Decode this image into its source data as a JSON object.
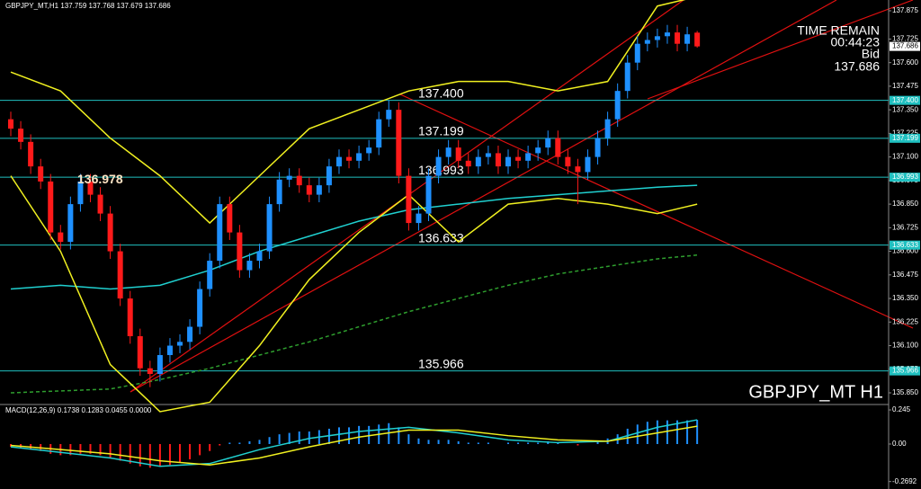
{
  "chart_data": [
    {
      "type": "candlestick",
      "header": "GBPJPY_MT,H1 137.759 137.768 137.679 137.686",
      "time_remain_title": "TIME REMAIN",
      "time_remain": "00:44:23",
      "bid_label": "Bid",
      "bid": 137.686,
      "symbol_label": "GBPJPY_MT H1",
      "price_label": 136.978,
      "current_price": 137.686,
      "up_color": "#1e90ff",
      "down_color": "#ff1a1a",
      "level_color": "#20c0c0",
      "ylim": [
        135.788,
        137.932
      ],
      "yticks": [
        {
          "value": 137.875,
          "label": "137.875"
        },
        {
          "value": 137.725,
          "label": "137.725"
        },
        {
          "value": 137.6,
          "label": "137.600"
        },
        {
          "value": 137.475,
          "label": "137.475"
        },
        {
          "value": 137.35,
          "label": "137.350"
        },
        {
          "value": 137.225,
          "label": "137.225"
        },
        {
          "value": 137.1,
          "label": "137.100"
        },
        {
          "value": 136.975,
          "label": "136.975"
        },
        {
          "value": 136.85,
          "label": "136.850"
        },
        {
          "value": 136.725,
          "label": "136.725"
        },
        {
          "value": 136.6,
          "label": "136.600"
        },
        {
          "value": 136.475,
          "label": "136.475"
        },
        {
          "value": 136.35,
          "label": "136.350"
        },
        {
          "value": 136.225,
          "label": "136.225"
        },
        {
          "value": 136.1,
          "label": "136.100"
        },
        {
          "value": 135.975,
          "label": "135.975"
        },
        {
          "value": 135.85,
          "label": "135.850"
        }
      ],
      "levels": [
        {
          "value": 137.4,
          "label": "137.400"
        },
        {
          "value": 137.199,
          "label": "137.199"
        },
        {
          "value": 136.993,
          "label": "136.993"
        },
        {
          "value": 136.633,
          "label": "136.633"
        },
        {
          "value": 135.966,
          "label": "135.966"
        }
      ],
      "ohlc": [
        [
          137.3,
          137.34,
          137.21,
          137.25
        ],
        [
          137.25,
          137.29,
          137.14,
          137.18
        ],
        [
          137.18,
          137.22,
          137.01,
          137.05
        ],
        [
          137.05,
          137.09,
          136.93,
          136.97
        ],
        [
          136.97,
          137.01,
          136.66,
          136.7
        ],
        [
          136.7,
          136.74,
          136.61,
          136.65
        ],
        [
          136.65,
          136.89,
          136.61,
          136.85
        ],
        [
          136.85,
          137.01,
          136.81,
          136.97
        ],
        [
          136.97,
          137.01,
          136.86,
          136.9
        ],
        [
          136.9,
          136.94,
          136.76,
          136.8
        ],
        [
          136.8,
          136.84,
          136.56,
          136.6
        ],
        [
          136.6,
          136.64,
          136.31,
          136.35
        ],
        [
          136.35,
          136.39,
          136.11,
          136.15
        ],
        [
          136.15,
          136.19,
          135.94,
          135.98
        ],
        [
          135.98,
          136.02,
          135.88,
          135.95
        ],
        [
          135.95,
          136.09,
          135.91,
          136.05
        ],
        [
          136.05,
          136.14,
          136.01,
          136.1
        ],
        [
          136.1,
          136.16,
          136.06,
          136.12
        ],
        [
          136.12,
          136.24,
          136.08,
          136.2
        ],
        [
          136.2,
          136.44,
          136.16,
          136.4
        ],
        [
          136.4,
          136.59,
          136.36,
          136.55
        ],
        [
          136.55,
          136.89,
          136.51,
          136.85
        ],
        [
          136.85,
          136.89,
          136.66,
          136.7
        ],
        [
          136.7,
          136.74,
          136.46,
          136.5
        ],
        [
          136.5,
          136.59,
          136.46,
          136.55
        ],
        [
          136.55,
          136.64,
          136.51,
          136.6
        ],
        [
          136.6,
          136.89,
          136.56,
          136.85
        ],
        [
          136.85,
          137.02,
          136.81,
          136.98
        ],
        [
          136.98,
          137.04,
          136.94,
          137.0
        ],
        [
          137.0,
          137.04,
          136.91,
          136.95
        ],
        [
          136.95,
          136.99,
          136.86,
          136.9
        ],
        [
          136.9,
          136.99,
          136.86,
          136.95
        ],
        [
          136.95,
          137.09,
          136.91,
          137.05
        ],
        [
          137.05,
          137.14,
          137.01,
          137.1
        ],
        [
          137.1,
          137.14,
          137.04,
          137.08
        ],
        [
          137.08,
          137.16,
          137.04,
          137.12
        ],
        [
          137.12,
          137.19,
          137.08,
          137.15
        ],
        [
          137.15,
          137.34,
          137.11,
          137.3
        ],
        [
          137.3,
          137.4,
          137.26,
          137.35
        ],
        [
          137.35,
          137.39,
          136.96,
          137.0
        ],
        [
          137.0,
          137.04,
          136.71,
          136.75
        ],
        [
          136.75,
          136.84,
          136.71,
          136.8
        ],
        [
          136.8,
          137.04,
          136.76,
          137.0
        ],
        [
          137.0,
          137.14,
          136.96,
          137.1
        ],
        [
          137.1,
          137.19,
          137.06,
          137.15
        ],
        [
          137.15,
          137.19,
          137.04,
          137.08
        ],
        [
          137.08,
          137.12,
          137.01,
          137.05
        ],
        [
          137.05,
          137.14,
          137.01,
          137.1
        ],
        [
          137.1,
          137.16,
          137.06,
          137.12
        ],
        [
          137.12,
          137.16,
          137.01,
          137.05
        ],
        [
          137.05,
          137.14,
          137.01,
          137.1
        ],
        [
          137.1,
          137.14,
          137.04,
          137.08
        ],
        [
          137.08,
          137.16,
          137.04,
          137.12
        ],
        [
          137.12,
          137.19,
          137.08,
          137.15
        ],
        [
          137.15,
          137.24,
          137.11,
          137.2
        ],
        [
          137.2,
          137.24,
          137.06,
          137.1
        ],
        [
          137.1,
          137.14,
          137.01,
          137.05
        ],
        [
          137.05,
          137.09,
          136.85,
          137.02
        ],
        [
          137.02,
          137.14,
          136.98,
          137.1
        ],
        [
          137.1,
          137.24,
          137.06,
          137.2
        ],
        [
          137.2,
          137.34,
          137.16,
          137.3
        ],
        [
          137.3,
          137.49,
          137.26,
          137.45
        ],
        [
          137.45,
          137.64,
          137.41,
          137.6
        ],
        [
          137.6,
          137.74,
          137.56,
          137.7
        ],
        [
          137.7,
          137.76,
          137.66,
          137.72
        ],
        [
          137.72,
          137.78,
          137.68,
          137.74
        ],
        [
          137.74,
          137.8,
          137.7,
          137.76
        ],
        [
          137.76,
          137.8,
          137.66,
          137.7
        ],
        [
          137.7,
          137.79,
          137.66,
          137.75
        ],
        [
          137.759,
          137.768,
          137.679,
          137.686
        ]
      ],
      "overlay_x": [
        0,
        5,
        10,
        15,
        20,
        25,
        30,
        35,
        40,
        45,
        50,
        55,
        60,
        65,
        69
      ],
      "overlays": [
        {
          "color": "#20d0d0",
          "values": [
            136.4,
            136.42,
            136.4,
            136.42,
            136.5,
            136.6,
            136.68,
            136.76,
            136.82,
            136.85,
            136.88,
            136.9,
            136.92,
            136.94,
            136.95
          ]
        },
        {
          "color": "#2e9e2e",
          "dash": true,
          "values": [
            135.85,
            135.86,
            135.87,
            135.92,
            135.98,
            136.05,
            136.12,
            136.2,
            136.28,
            136.35,
            136.42,
            136.48,
            136.52,
            136.56,
            136.58
          ]
        },
        {
          "color": "#f0f020",
          "values": [
            137.55,
            137.45,
            137.2,
            137.0,
            136.75,
            137.0,
            137.25,
            137.35,
            137.45,
            137.5,
            137.5,
            137.45,
            137.5,
            137.9,
            137.95
          ]
        },
        {
          "color": "#f0f020",
          "values": [
            137.0,
            136.6,
            136.0,
            135.75,
            135.8,
            136.1,
            136.45,
            136.7,
            136.9,
            136.65,
            136.85,
            136.88,
            136.85,
            136.8,
            136.85
          ]
        }
      ]
    },
    {
      "type": "macd",
      "header": "MACD(12,26,9) 0.1738 0.1283 0.0455 0.0000",
      "pos_color": "#1e90ff",
      "neg_color": "#ff1a1a",
      "ylim": [
        -0.297,
        0.271
      ],
      "yticks": [
        0.245,
        {
          "value": 0,
          "label": "0.00"
        },
        -0.2692
      ],
      "values": [
        -0.02,
        -0.03,
        -0.04,
        -0.05,
        -0.07,
        -0.08,
        -0.08,
        -0.07,
        -0.07,
        -0.08,
        -0.1,
        -0.12,
        -0.14,
        -0.16,
        -0.17,
        -0.16,
        -0.15,
        -0.13,
        -0.11,
        -0.08,
        -0.05,
        -0.01,
        0.01,
        0.01,
        0.02,
        0.03,
        0.05,
        0.07,
        0.08,
        0.09,
        0.09,
        0.1,
        0.11,
        0.12,
        0.12,
        0.13,
        0.13,
        0.14,
        0.15,
        0.12,
        0.07,
        0.04,
        0.03,
        0.03,
        0.03,
        0.02,
        0.01,
        0.01,
        0.01,
        0.0,
        0.01,
        0.01,
        0.01,
        0.01,
        0.02,
        0.01,
        0.0,
        -0.01,
        0.0,
        0.02,
        0.04,
        0.07,
        0.11,
        0.14,
        0.16,
        0.17,
        0.17,
        0.17,
        0.17,
        0.1738
      ],
      "overlay_x": [
        0,
        5,
        10,
        15,
        20,
        25,
        30,
        35,
        40,
        45,
        50,
        55,
        60,
        65,
        69
      ],
      "overlays": [
        {
          "color": "#20d0d0",
          "values": [
            -0.02,
            -0.06,
            -0.1,
            -0.16,
            -0.14,
            -0.04,
            0.04,
            0.09,
            0.12,
            0.08,
            0.03,
            0.01,
            0.02,
            0.12,
            0.1738
          ]
        },
        {
          "color": "#f0f020",
          "values": [
            -0.01,
            -0.04,
            -0.07,
            -0.12,
            -0.15,
            -0.1,
            -0.02,
            0.05,
            0.1,
            0.1,
            0.06,
            0.03,
            0.02,
            0.08,
            0.1283
          ]
        }
      ]
    }
  ]
}
